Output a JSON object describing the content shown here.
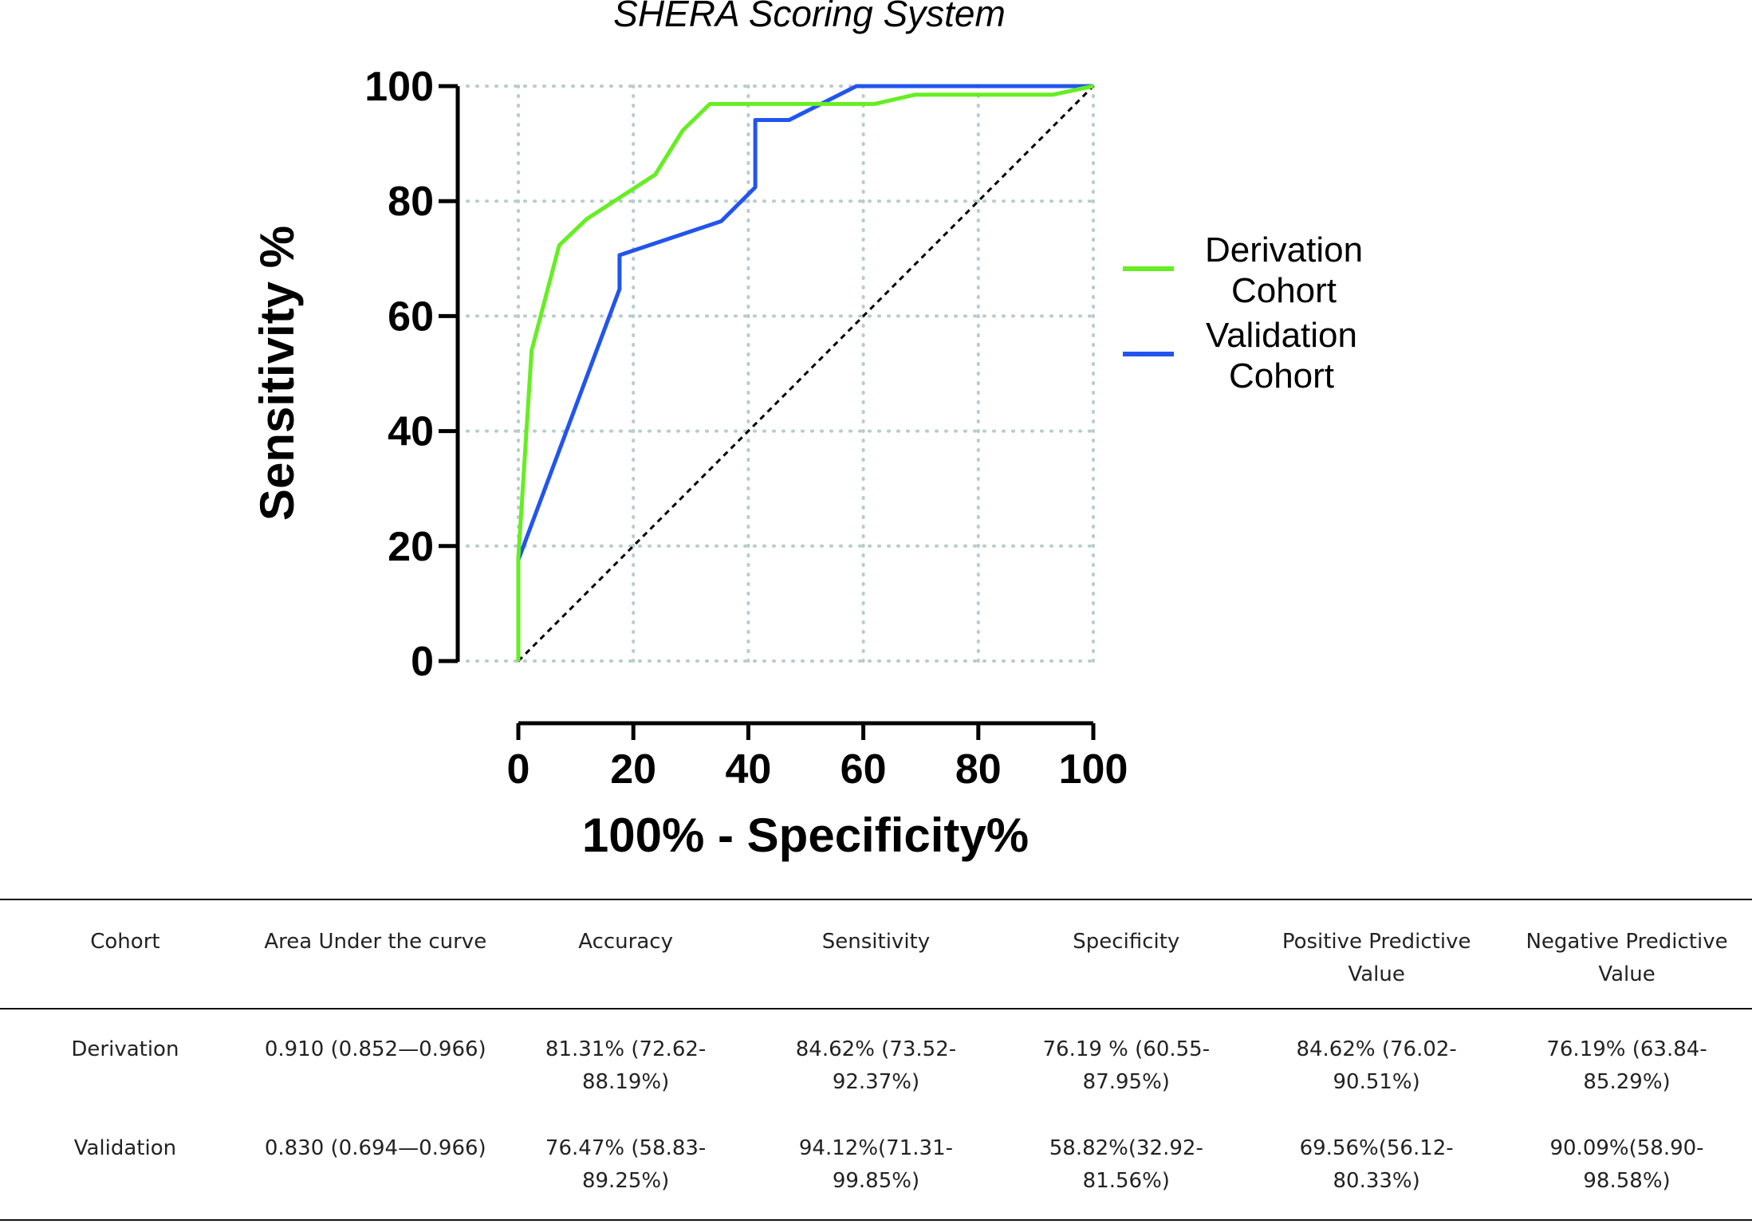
{
  "chart_data": {
    "type": "line",
    "title": "SHERA  Scoring  System",
    "xlabel": "100% - Specificity%",
    "ylabel": "Sensitivity %",
    "xlim": [
      0,
      100
    ],
    "ylim": [
      0,
      100
    ],
    "x_ticks": [
      "0",
      "20",
      "40",
      "60",
      "80",
      "100"
    ],
    "y_ticks": [
      "0",
      "20",
      "40",
      "60",
      "80",
      "100"
    ],
    "grid": "dotted",
    "legend_position": "right",
    "series": [
      {
        "name": "Derivation Cohort",
        "legend_lines": [
          "Derivation",
          "Cohort"
        ],
        "color": "#66ee22",
        "x": [
          0,
          0,
          2.3,
          7.1,
          11.9,
          23.8,
          28.6,
          33.3,
          61.9,
          69,
          92.9,
          100
        ],
        "y": [
          0,
          18,
          54,
          72.3,
          76.9,
          84.6,
          92.3,
          96.9,
          96.9,
          98.5,
          98.5,
          100
        ]
      },
      {
        "name": "Validation Cohort",
        "legend_lines": [
          "Validation",
          "Cohort"
        ],
        "color": "#2255ee",
        "x": [
          0,
          0,
          17.6,
          17.6,
          35.3,
          41.2,
          41.2,
          47.1,
          58.8,
          100
        ],
        "y": [
          0,
          17.6,
          64.7,
          70.6,
          76.5,
          82.4,
          94.1,
          94.1,
          100,
          100
        ]
      },
      {
        "name": "Reference line",
        "color": "#000000",
        "x": [
          0,
          100
        ],
        "y": [
          0,
          100
        ]
      }
    ]
  },
  "table": {
    "headers": [
      "Cohort",
      "Area Under the curve",
      "Accuracy",
      "Sensitivity",
      "Specificity",
      "Positive Predictive Value",
      "Negative Predictive Value"
    ],
    "rows": [
      [
        "Derivation",
        "0.910 (0.852—0.966)",
        "81.31% (72.62-88.19%)",
        "84.62% (73.52-92.37%)",
        "76.19 % (60.55-87.95%)",
        "84.62% (76.02-90.51%)",
        "76.19% (63.84-85.29%)"
      ],
      [
        "Validation",
        "0.830 (0.694—0.966)",
        "76.47% (58.83-89.25%)",
        "94.12%(71.31-99.85%)",
        "58.82%(32.92-81.56%)",
        "69.56%(56.12-80.33%)",
        "90.09%(58.90-98.58%)"
      ]
    ]
  }
}
